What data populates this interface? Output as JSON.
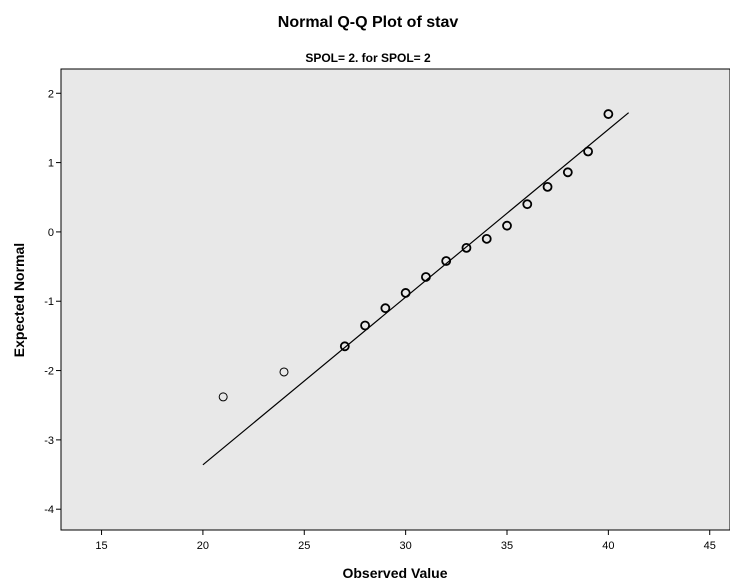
{
  "chart_data": {
    "type": "scatter",
    "title": "Normal Q-Q Plot of stav",
    "subtitle": "SPOL= 2. for SPOL= 2",
    "xlabel": "Observed Value",
    "ylabel": "Expected Normal",
    "xlim": [
      13,
      46
    ],
    "ylim": [
      -4.3,
      2.35
    ],
    "xticks": [
      15,
      20,
      25,
      30,
      35,
      40,
      45
    ],
    "yticks": [
      2,
      1,
      0,
      -1,
      -2,
      -3,
      -4
    ],
    "grid": false,
    "background_color": "#e8e8e8",
    "line_color": "#000000",
    "point_color": "#000000",
    "points": [
      {
        "x": 21,
        "y": -2.38
      },
      {
        "x": 24,
        "y": -2.02
      },
      {
        "x": 27,
        "y": -1.65
      },
      {
        "x": 28,
        "y": -1.35
      },
      {
        "x": 29,
        "y": -1.1
      },
      {
        "x": 30,
        "y": -0.88
      },
      {
        "x": 31,
        "y": -0.65
      },
      {
        "x": 32,
        "y": -0.42
      },
      {
        "x": 33,
        "y": -0.23
      },
      {
        "x": 34,
        "y": -0.1
      },
      {
        "x": 35,
        "y": 0.09
      },
      {
        "x": 36,
        "y": 0.4
      },
      {
        "x": 37,
        "y": 0.65
      },
      {
        "x": 38,
        "y": 0.86
      },
      {
        "x": 39,
        "y": 1.16
      },
      {
        "x": 40,
        "y": 1.7
      }
    ],
    "reference_line": {
      "x1": 20,
      "y1": -3.36,
      "x2": 41,
      "y2": 1.72
    }
  }
}
